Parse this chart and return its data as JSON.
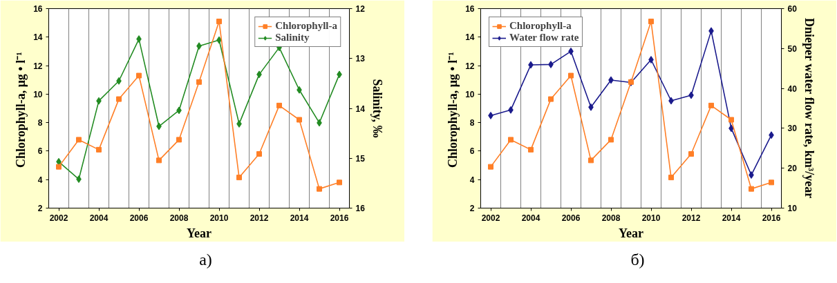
{
  "chart_data": [
    {
      "type": "line",
      "categories": [
        "2002",
        null,
        "2004",
        null,
        "2006",
        null,
        "2008",
        null,
        "2010",
        null,
        "2012",
        null,
        "2014",
        null,
        "2016"
      ],
      "xlabel": "Year",
      "ylabel": "Chlorophyll-a,  μg • l⁻¹",
      "y2label": "Salinity, ‰",
      "ylim": [
        2,
        16
      ],
      "yticks": [
        2,
        4,
        6,
        8,
        10,
        12,
        14,
        16
      ],
      "y2lim": [
        16,
        12
      ],
      "y2ticks": [
        12,
        13,
        14,
        15,
        16
      ],
      "grid": "x",
      "legend": "top right",
      "annotations": [
        "а)"
      ],
      "series": [
        {
          "name": "Chlorophyll-a",
          "color": "#ff7f27",
          "marker": "square",
          "values": [
            4.9,
            6.8,
            6.1,
            9.65,
            11.3,
            5.35,
            6.8,
            10.85,
            15.1,
            4.15,
            5.8,
            9.2,
            8.2,
            3.35,
            3.8
          ]
        },
        {
          "name": "Salinity",
          "color": "#228b22",
          "marker": "diamond",
          "axis": "y2",
          "values": [
            15.07,
            15.42,
            13.85,
            13.45,
            12.61,
            14.36,
            14.04,
            12.75,
            12.63,
            14.31,
            13.32,
            12.78,
            13.63,
            14.29,
            13.32
          ]
        }
      ]
    },
    {
      "type": "line",
      "categories": [
        "2002",
        null,
        "2004",
        null,
        "2006",
        null,
        "2008",
        null,
        "2010",
        null,
        "2012",
        null,
        "2014",
        null,
        "2016"
      ],
      "xlabel": "Year",
      "ylabel": "Chlorophyll-a,  μg • l⁻¹",
      "y2label": "Dnieper water flow rate, km³/year",
      "ylim": [
        2,
        16
      ],
      "yticks": [
        2,
        4,
        6,
        8,
        10,
        12,
        14,
        16
      ],
      "y2lim": [
        10,
        60
      ],
      "y2ticks": [
        10,
        20,
        30,
        40,
        50,
        60
      ],
      "grid": "x",
      "legend": "top left",
      "annotations": [
        "б)"
      ],
      "series": [
        {
          "name": "Chlorophyll-a",
          "color": "#ff7f27",
          "marker": "square",
          "values": [
            4.9,
            6.8,
            6.1,
            9.65,
            11.3,
            5.35,
            6.8,
            10.85,
            15.1,
            4.15,
            5.8,
            9.2,
            8.2,
            3.35,
            3.8
          ]
        },
        {
          "name": "Water flow rate",
          "color": "#1a1a8c",
          "marker": "diamond",
          "axis": "y2",
          "values": [
            33.2,
            34.6,
            45.9,
            46.0,
            49.3,
            35.3,
            42.1,
            41.5,
            47.2,
            36.9,
            38.3,
            54.4,
            30.0,
            18.3,
            28.3
          ]
        }
      ]
    }
  ]
}
